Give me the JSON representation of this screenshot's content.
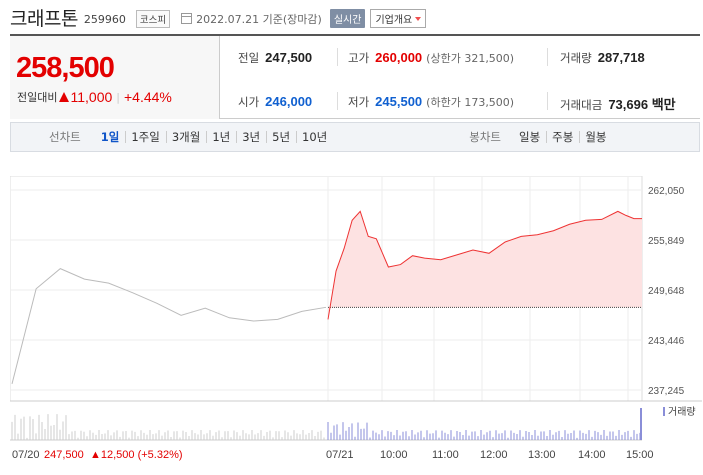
{
  "header": {
    "name": "크래프톤",
    "code": "259960",
    "market": "코스피",
    "date": "2022.07.21 기준(장마감)",
    "live_label": "실시간",
    "company_label": "기업개요"
  },
  "price": {
    "current": "258,500",
    "change_label": "전일대비",
    "change_value": "11,000",
    "change_pct": "+4.44%"
  },
  "stats": {
    "prev_close_label": "전일",
    "prev_close": "247,500",
    "high_label": "고가",
    "high": "260,000",
    "upper_limit_label": "(상한가 321,500)",
    "volume_label": "거래량",
    "volume": "287,718",
    "open_label": "시가",
    "open": "246,000",
    "low_label": "저가",
    "low": "245,500",
    "lower_limit_label": "(하한가 173,500)",
    "amount_label": "거래대금",
    "amount": "73,696 백만"
  },
  "tabs": {
    "line_title": "선차트",
    "line_items": [
      "1일",
      "1주일",
      "3개월",
      "1년",
      "3년",
      "5년",
      "10년"
    ],
    "active": "1일",
    "candle_title": "봉차트",
    "candle_items": [
      "일봉",
      "주봉",
      "월봉"
    ]
  },
  "chart_data": {
    "type": "line",
    "y_ticks": [
      "262,050",
      "255,849",
      "249,648",
      "243,446",
      "237,245"
    ],
    "ylim": [
      237245,
      262050
    ],
    "x_labels": [
      "07/21",
      "10:00",
      "11:00",
      "12:00",
      "13:00",
      "14:00",
      "15:00"
    ],
    "baseline": 247500,
    "volume_label": "거래량",
    "prev_day_summary": {
      "date": "07/20",
      "close": "247,500",
      "change": "▲12,500 (+5.32%)"
    },
    "series": [
      {
        "x": [
          "07/20 09:00",
          "07/20 09:30",
          "07/20 10:00",
          "07/20 10:30",
          "07/20 11:00",
          "07/20 11:30",
          "07/20 12:00",
          "07/20 12:30",
          "07/20 13:00",
          "07/20 13:30",
          "07/20 14:00",
          "07/20 14:30",
          "07/20 15:00",
          "07/20 15:30"
        ],
        "values": [
          238000,
          249800,
          252300,
          251000,
          250500,
          249300,
          248000,
          246500,
          247400,
          246200,
          245800,
          246000,
          247000,
          247500
        ]
      },
      {
        "x": [
          "09:00",
          "09:10",
          "09:20",
          "09:30",
          "09:40",
          "09:50",
          "10:00",
          "10:15",
          "10:30",
          "10:45",
          "11:00",
          "11:20",
          "11:40",
          "12:00",
          "12:20",
          "12:40",
          "13:00",
          "13:20",
          "13:40",
          "14:00",
          "14:20",
          "14:40",
          "15:00",
          "15:10",
          "15:20",
          "15:30"
        ],
        "values": [
          246000,
          252000,
          254800,
          258300,
          259400,
          256300,
          256000,
          252500,
          252800,
          253900,
          253600,
          253400,
          254000,
          254600,
          254200,
          255600,
          256300,
          256500,
          257000,
          257800,
          258300,
          258400,
          259400,
          258900,
          258500,
          258500
        ]
      }
    ]
  }
}
